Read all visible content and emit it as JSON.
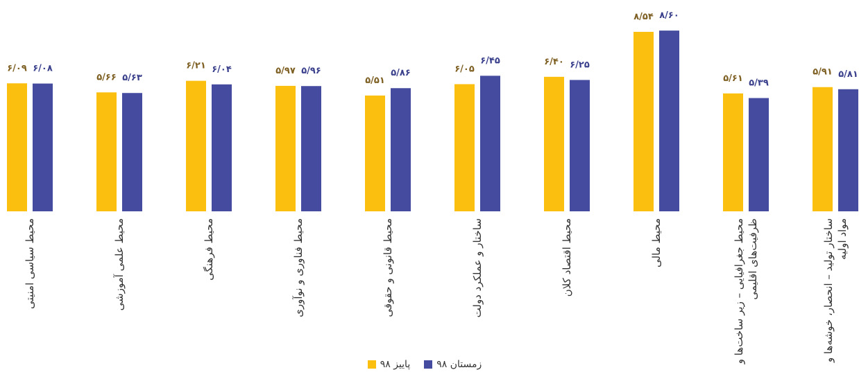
{
  "chart_data": {
    "type": "bar",
    "categories": [
      "محیط سیاسی امنیتی",
      "محیط علمی آموزشی",
      "محیط فرهنگی",
      "محیط فناوری و نوآوری",
      "محیط قانونی و حقوقی",
      "ساختار و عملکرد دولت",
      "محیط اقتصاد کلان",
      "محیط مالی",
      "محیط جغرافیایی – زیر ساخت‌ها و ظرفیت‌های اقلیمی",
      "ساختار تولید – انحصار، خوشه‌ها و مواد اولیه"
    ],
    "series": [
      {
        "name": "پاییز ۹۸",
        "color": "#fbbf0f",
        "label_color": "#7d5f22",
        "values": [
          6.09,
          5.66,
          6.21,
          5.97,
          5.51,
          6.05,
          6.4,
          8.54,
          5.61,
          5.91
        ],
        "value_labels": [
          "۶/۰۹",
          "۵/۶۶",
          "۶/۲۱",
          "۵/۹۷",
          "۵/۵۱",
          "۶/۰۵",
          "۶/۴۰",
          "۸/۵۴",
          "۵/۶۱",
          "۵/۹۱"
        ]
      },
      {
        "name": "زمستان ۹۸",
        "color": "#454ca0",
        "label_color": "#3a408c",
        "values": [
          6.08,
          5.63,
          6.04,
          5.96,
          5.86,
          6.45,
          6.25,
          8.6,
          5.39,
          5.81
        ],
        "value_labels": [
          "۶/۰۸",
          "۵/۶۳",
          "۶/۰۴",
          "۵/۹۶",
          "۵/۸۶",
          "۶/۴۵",
          "۶/۲۵",
          "۸/۶۰",
          "۵/۳۹",
          "۵/۸۱"
        ]
      }
    ],
    "ylim": [
      0,
      9
    ]
  }
}
